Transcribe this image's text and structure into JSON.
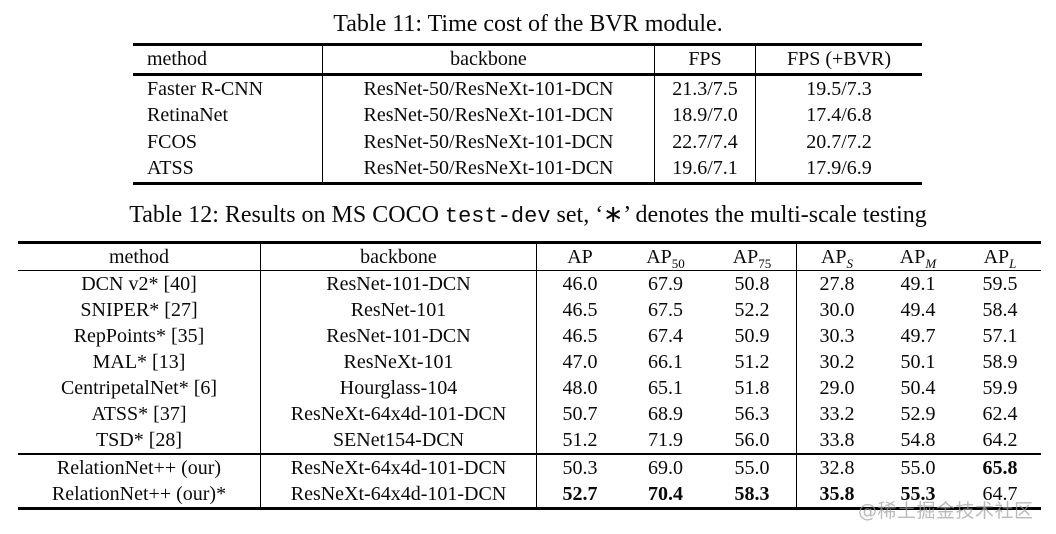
{
  "page": {
    "watermark": {
      "text": "@稀土掘金技术社区",
      "color": "#9f9f9f"
    }
  },
  "table11": {
    "title": "Table 11: Time cost of the BVR module.",
    "headers": [
      {
        "text": "method"
      },
      {
        "text": "backbone"
      },
      {
        "text": "FPS"
      },
      {
        "text": "FPS (+BVR)"
      }
    ],
    "rows": [
      {
        "cells": [
          "Faster R-CNN",
          "ResNet-50/ResNeXt-101-DCN",
          "21.3/7.5",
          "19.5/7.3"
        ],
        "bold": []
      },
      {
        "cells": [
          "RetinaNet",
          "ResNet-50/ResNeXt-101-DCN",
          "18.9/7.0",
          "17.4/6.8"
        ],
        "bold": []
      },
      {
        "cells": [
          "FCOS",
          "ResNet-50/ResNeXt-101-DCN",
          "22.7/7.4",
          "20.7/7.2"
        ],
        "bold": []
      },
      {
        "cells": [
          "ATSS",
          "ResNet-50/ResNeXt-101-DCN",
          "19.6/7.1",
          "17.9/6.9"
        ],
        "bold": []
      }
    ]
  },
  "table12": {
    "title_prefix": "Table 12: Results on MS COCO ",
    "title_mono": "test-dev",
    "title_suffix": " set, ‘∗’ denotes the multi-scale testing",
    "headers": [
      {
        "text": "method"
      },
      {
        "text": "backbone"
      },
      {
        "text": "AP"
      },
      {
        "text": "AP",
        "sub": "50"
      },
      {
        "text": "AP",
        "sub": "75"
      },
      {
        "text": "AP",
        "sub": "S",
        "italic_sub": true
      },
      {
        "text": "AP",
        "sub": "M",
        "italic_sub": true
      },
      {
        "text": "AP",
        "sub": "L",
        "italic_sub": true
      }
    ],
    "rows": [
      {
        "cells": [
          "DCN v2* [40]",
          "ResNet-101-DCN",
          "46.0",
          "67.9",
          "50.8",
          "27.8",
          "49.1",
          "59.5"
        ],
        "bold": []
      },
      {
        "cells": [
          "SNIPER* [27]",
          "ResNet-101",
          "46.5",
          "67.5",
          "52.2",
          "30.0",
          "49.4",
          "58.4"
        ],
        "bold": []
      },
      {
        "cells": [
          "RepPoints* [35]",
          "ResNet-101-DCN",
          "46.5",
          "67.4",
          "50.9",
          "30.3",
          "49.7",
          "57.1"
        ],
        "bold": []
      },
      {
        "cells": [
          "MAL* [13]",
          "ResNeXt-101",
          "47.0",
          "66.1",
          "51.2",
          "30.2",
          "50.1",
          "58.9"
        ],
        "bold": []
      },
      {
        "cells": [
          "CentripetalNet* [6]",
          "Hourglass-104",
          "48.0",
          "65.1",
          "51.8",
          "29.0",
          "50.4",
          "59.9"
        ],
        "bold": []
      },
      {
        "cells": [
          "ATSS* [37]",
          "ResNeXt-64x4d-101-DCN",
          "50.7",
          "68.9",
          "56.3",
          "33.2",
          "52.9",
          "62.4"
        ],
        "bold": []
      },
      {
        "cells": [
          "TSD* [28]",
          "SENet154-DCN",
          "51.2",
          "71.9",
          "56.0",
          "33.8",
          "54.8",
          "64.2"
        ],
        "bold": [],
        "rule_after": true
      },
      {
        "cells": [
          "RelationNet++ (our)",
          "ResNeXt-64x4d-101-DCN",
          "50.3",
          "69.0",
          "55.0",
          "32.8",
          "55.0",
          "65.8"
        ],
        "bold": [
          7
        ]
      },
      {
        "cells": [
          "RelationNet++ (our)*",
          "ResNeXt-64x4d-101-DCN",
          "52.7",
          "70.4",
          "58.3",
          "35.8",
          "55.3",
          "64.7"
        ],
        "bold": [
          2,
          3,
          4,
          5,
          6
        ]
      }
    ]
  }
}
